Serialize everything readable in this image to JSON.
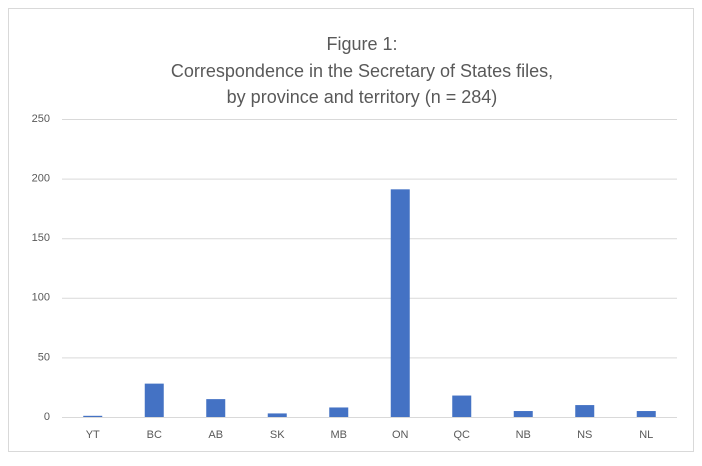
{
  "chart_data": {
    "type": "bar",
    "title": [
      "Figure 1:",
      "Correspondence in the Secretary of States files,",
      "by province and territory (n = 284)"
    ],
    "categories": [
      "YT",
      "BC",
      "AB",
      "SK",
      "MB",
      "ON",
      "QC",
      "NB",
      "NS",
      "NL"
    ],
    "values": [
      1,
      28,
      15,
      3,
      8,
      191,
      18,
      5,
      10,
      5
    ],
    "color": "#4472c4",
    "ylim": [
      0,
      250
    ],
    "yticks": [
      0,
      50,
      100,
      150,
      200,
      250
    ],
    "grid": true
  }
}
